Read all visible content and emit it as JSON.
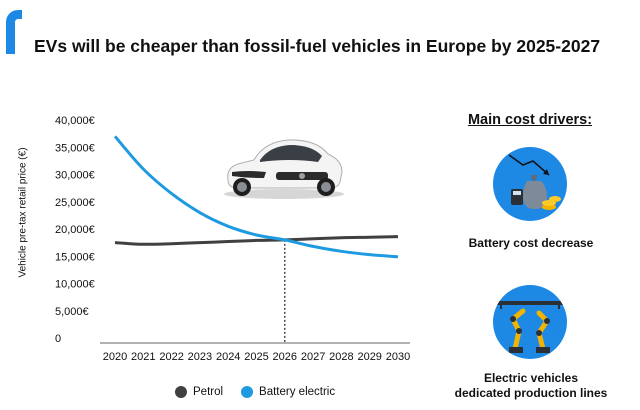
{
  "header": {
    "title": "EVs will be cheaper than fossil-fuel vehicles in Europe by 2025-2027"
  },
  "drivers": {
    "title": "Main cost drivers:",
    "items": [
      {
        "label": "Battery cost decrease",
        "icon": "money-bag-battery-icon"
      },
      {
        "label_line1": "Electric vehicles",
        "label_line2": "dedicated production lines",
        "icon": "robotic-arms-icon"
      }
    ]
  },
  "colors": {
    "accent": "#1e88e5",
    "petrol": "#404040",
    "electric": "#1e9be0"
  },
  "chart_data": {
    "type": "line",
    "title": "",
    "xlabel": "",
    "ylabel": "Vehicle pre-tax retail price (€)",
    "x": [
      2020,
      2021,
      2022,
      2023,
      2024,
      2025,
      2026,
      2027,
      2028,
      2029,
      2030
    ],
    "xticks": [
      "2020",
      "2021",
      "2022",
      "2023",
      "2024",
      "2025",
      "2026",
      "2027",
      "2028",
      "2029",
      "2030"
    ],
    "yticks": [
      {
        "value": 0,
        "label": "0"
      },
      {
        "value": 5000,
        "label": "5,000€"
      },
      {
        "value": 10000,
        "label": "10,000€"
      },
      {
        "value": 15000,
        "label": "15,000€"
      },
      {
        "value": 20000,
        "label": "20,000€"
      },
      {
        "value": 25000,
        "label": "25,000€"
      },
      {
        "value": 30000,
        "label": "30,000€"
      },
      {
        "value": 35000,
        "label": "35,000€"
      },
      {
        "value": 40000,
        "label": "40,000€"
      }
    ],
    "ylim": [
      0,
      40000
    ],
    "crossover_year": 2026,
    "legend_position": "bottom",
    "series": [
      {
        "name": "Petrol",
        "values": [
          17500,
          17200,
          17300,
          17500,
          17700,
          17900,
          18000,
          18200,
          18400,
          18500,
          18600
        ]
      },
      {
        "name": "Battery electric",
        "values": [
          37000,
          31000,
          26500,
          23000,
          20500,
          18900,
          18000,
          16800,
          15900,
          15300,
          14900
        ]
      }
    ]
  }
}
